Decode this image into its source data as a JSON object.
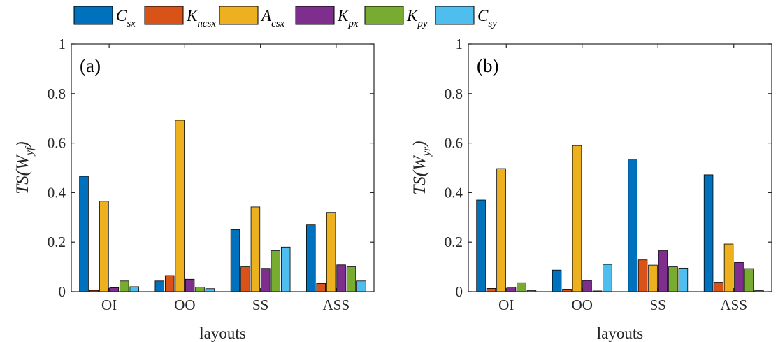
{
  "legend": [
    {
      "base": "C",
      "sub": "sx"
    },
    {
      "base": "K",
      "sub": "ncsx"
    },
    {
      "base": "A",
      "sub": "csx"
    },
    {
      "base": "K",
      "sub": "px"
    },
    {
      "base": "K",
      "sub": "py"
    },
    {
      "base": "C",
      "sub": "sy"
    }
  ],
  "colors": [
    "#0072BD",
    "#D95319",
    "#EDB120",
    "#7E2F8E",
    "#77AC30",
    "#4DBEEE"
  ],
  "chart_data": [
    {
      "type": "bar",
      "panel_label": "(a)",
      "xlabel": "layouts",
      "ylabel": {
        "prefix": "TS(W",
        "sub": "yf",
        "suffix": ")"
      },
      "ylim": [
        0,
        1
      ],
      "yticks": [
        "0",
        "0.2",
        "0.4",
        "0.6",
        "0.8",
        "1"
      ],
      "categories": [
        "OI",
        "OO",
        "SS",
        "ASS"
      ],
      "series": [
        {
          "values": [
            0.466,
            0.043,
            0.25,
            0.272
          ]
        },
        {
          "values": [
            0.005,
            0.065,
            0.1,
            0.033
          ]
        },
        {
          "values": [
            0.365,
            0.692,
            0.342,
            0.32
          ]
        },
        {
          "values": [
            0.016,
            0.05,
            0.094,
            0.108
          ]
        },
        {
          "values": [
            0.043,
            0.018,
            0.165,
            0.1
          ]
        },
        {
          "values": [
            0.02,
            0.012,
            0.18,
            0.043
          ]
        }
      ]
    },
    {
      "type": "bar",
      "panel_label": "(b)",
      "xlabel": "layouts",
      "ylabel": {
        "prefix": "TS(W",
        "sub": "yr",
        "suffix": ")"
      },
      "ylim": [
        0,
        1
      ],
      "yticks": [
        "0",
        "0.2",
        "0.4",
        "0.6",
        "0.8",
        "1"
      ],
      "categories": [
        "OI",
        "OO",
        "SS",
        "ASS"
      ],
      "series": [
        {
          "values": [
            0.37,
            0.087,
            0.535,
            0.472
          ]
        },
        {
          "values": [
            0.013,
            0.01,
            0.128,
            0.038
          ]
        },
        {
          "values": [
            0.497,
            0.59,
            0.107,
            0.192
          ]
        },
        {
          "values": [
            0.018,
            0.045,
            0.165,
            0.118
          ]
        },
        {
          "values": [
            0.036,
            0.003,
            0.1,
            0.093
          ]
        },
        {
          "values": [
            0.004,
            0.11,
            0.095,
            0.004
          ]
        }
      ]
    }
  ]
}
